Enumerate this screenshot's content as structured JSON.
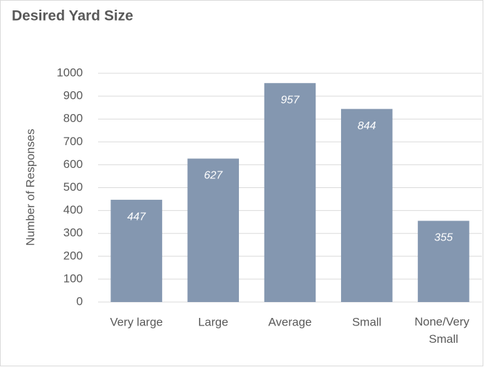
{
  "chart_data": {
    "type": "bar",
    "title": "Desired Yard Size",
    "y_label": "Number of Responses",
    "categories": [
      "Very large",
      "Large",
      "Average",
      "Small",
      "None/Very Small"
    ],
    "values": [
      447,
      627,
      957,
      844,
      355
    ],
    "color": "#8497b0",
    "ylim": [
      0,
      1000
    ],
    "yticks": [
      0,
      100,
      200,
      300,
      400,
      500,
      600,
      700,
      800,
      900,
      1000
    ],
    "grid": true
  }
}
